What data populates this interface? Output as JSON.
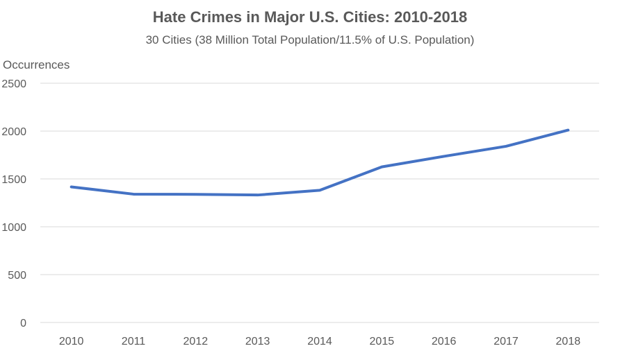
{
  "chart_data": {
    "type": "line",
    "title": "Hate Crimes in Major U.S. Cities: 2010-2018",
    "subtitle": "30 Cities (38 Million Total Population/11.5% of U.S. Population)",
    "xlabel": "",
    "ylabel": "Occurrences",
    "categories": [
      "2010",
      "2011",
      "2012",
      "2013",
      "2014",
      "2015",
      "2016",
      "2017",
      "2018"
    ],
    "series": [
      {
        "values": [
          1417,
          1341,
          1339,
          1332,
          1381,
          1626,
          1736,
          1841,
          2010
        ],
        "color": "#4472C4"
      }
    ],
    "ylim": [
      0,
      2500
    ],
    "yticks": [
      0,
      500,
      1000,
      1500,
      2000,
      2500
    ],
    "grid": true,
    "legend": "none"
  }
}
